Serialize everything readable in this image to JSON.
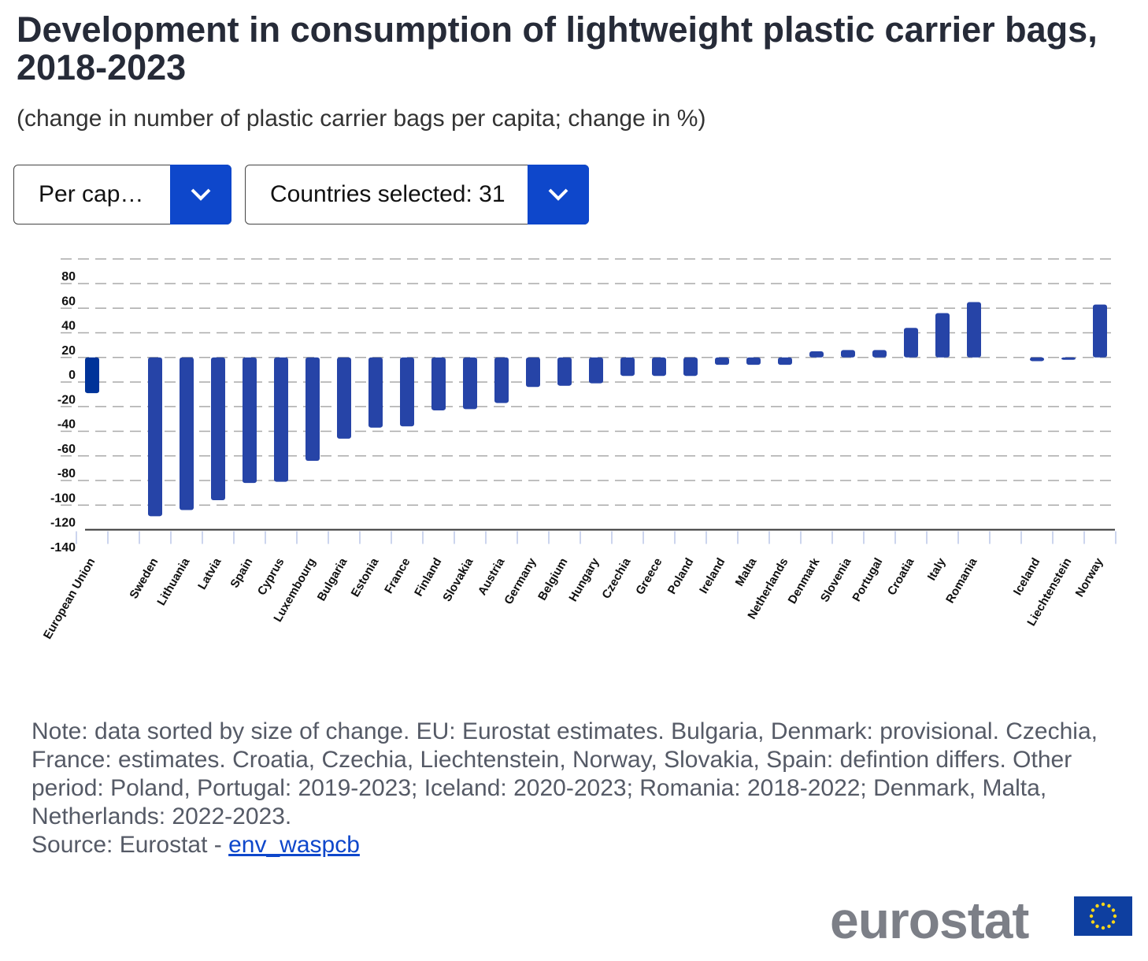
{
  "title": "Development in consumption of lightweight plastic carrier bags, 2018-2023",
  "subtitle": "(change in number of plastic carrier bags per capita; change in %)",
  "controls": {
    "measure_select": "Per cap…",
    "countries_select": "Countries selected: 31"
  },
  "note": "Note: data sorted by size of change. EU: Eurostat estimates. Bulgaria, Denmark: provisional. Czechia, France: estimates. Croatia, Czechia, Liechtenstein, Norway, Slovakia, Spain: defintion differs. Other period: Poland, Portugal: 2019-2023; Iceland: 2020-2023; Romania: 2018-2022; Denmark, Malta, Netherlands: 2022-2023.",
  "source_prefix": "Source: Eurostat - ",
  "source_link": "env_waspcb",
  "logo": "eurostat",
  "colors": {
    "eu_bar": "#003399",
    "bar": "#2644a7",
    "button": "#0e47cb"
  },
  "chart_data": {
    "type": "bar",
    "categories": [
      "European Union",
      "",
      "Sweden",
      "Lithuania",
      "Latvia",
      "Spain",
      "Cyprus",
      "Luxembourg",
      "Bulgaria",
      "Estonia",
      "France",
      "Finland",
      "Slovakia",
      "Austria",
      "Germany",
      "Belgium",
      "Hungary",
      "Czechia",
      "Greece",
      "Poland",
      "Ireland",
      "Malta",
      "Netherlands",
      "Denmark",
      "Slovenia",
      "Portugal",
      "Croatia",
      "Italy",
      "Romania",
      "",
      "Iceland",
      "Liechtenstein",
      "Norway"
    ],
    "values": [
      -9,
      null,
      -109,
      -104,
      -96,
      -82,
      -81,
      -64,
      -46,
      -37,
      -36,
      -23,
      -22,
      -17,
      -4,
      -3,
      -1,
      5,
      5,
      5,
      14,
      14,
      14,
      25,
      26,
      26,
      44,
      56,
      65,
      null,
      17,
      19,
      63
    ],
    "yticks": [
      80,
      60,
      40,
      20,
      0,
      -20,
      -40,
      -60,
      -80,
      -100,
      -120,
      -140
    ],
    "ylim": [
      -140,
      100
    ],
    "grid": true,
    "legend": "none",
    "title": "",
    "xlabel": "",
    "ylabel": ""
  }
}
